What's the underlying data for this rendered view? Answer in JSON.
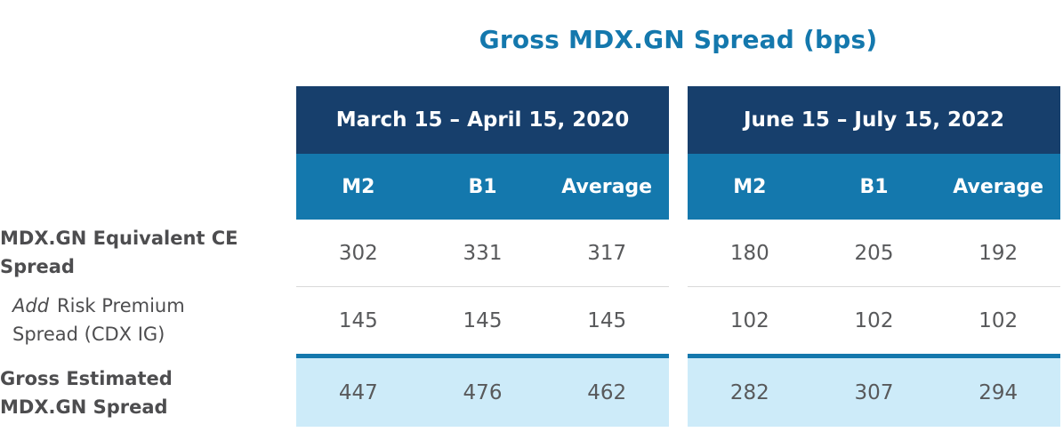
{
  "title": "Gross MDX.GN Spread (bps)",
  "colors": {
    "title_blue": "#1478AD",
    "period_header_navy": "#173F6C",
    "column_header_blue": "#1478AD",
    "total_row_light_blue": "#CDEBF9",
    "total_divider_blue": "#1478AD",
    "data_text_gray": "#58595B",
    "label_text_gray": "#4D4D4F",
    "row_divider_gray": "#D9D9D9"
  },
  "row_labels": [
    {
      "lines": [
        "MDX.GN Equivalent CE",
        "Spread"
      ],
      "style": "bold"
    },
    {
      "italic_word": "Add",
      "lines": [
        "Risk Premium",
        "Spread (CDX IG)"
      ],
      "style": "regular"
    },
    {
      "lines": [
        "Gross Estimated",
        "MDX.GN Spread"
      ],
      "style": "bold"
    }
  ],
  "tables": [
    {
      "period": "March 15 – April 15, 2020",
      "columns": [
        "M2",
        "B1",
        "Average"
      ],
      "rows": [
        [
          "302",
          "331",
          "317"
        ],
        [
          "145",
          "145",
          "145"
        ],
        [
          "447",
          "476",
          "462"
        ]
      ]
    },
    {
      "period": "June 15 – July 15, 2022",
      "columns": [
        "M2",
        "B1",
        "Average"
      ],
      "rows": [
        [
          "180",
          "205",
          "192"
        ],
        [
          "102",
          "102",
          "102"
        ],
        [
          "282",
          "307",
          "294"
        ]
      ]
    }
  ],
  "chart_data": {
    "type": "table",
    "title": "Gross MDX.GN Spread (bps)",
    "column_groups": [
      "March 15 – April 15, 2020",
      "June 15 – July 15, 2022"
    ],
    "columns": [
      "M2",
      "B1",
      "Average",
      "M2",
      "B1",
      "Average"
    ],
    "rows": [
      {
        "label": "MDX.GN Equivalent CE Spread",
        "values": [
          302,
          331,
          317,
          180,
          205,
          192
        ]
      },
      {
        "label": "Add Risk Premium Spread (CDX IG)",
        "values": [
          145,
          145,
          145,
          102,
          102,
          102
        ]
      },
      {
        "label": "Gross Estimated MDX.GN Spread",
        "values": [
          447,
          476,
          462,
          282,
          307,
          294
        ]
      }
    ],
    "notes": "Last row is highlighted light blue with a thick blue rule above it; values in basis points"
  }
}
